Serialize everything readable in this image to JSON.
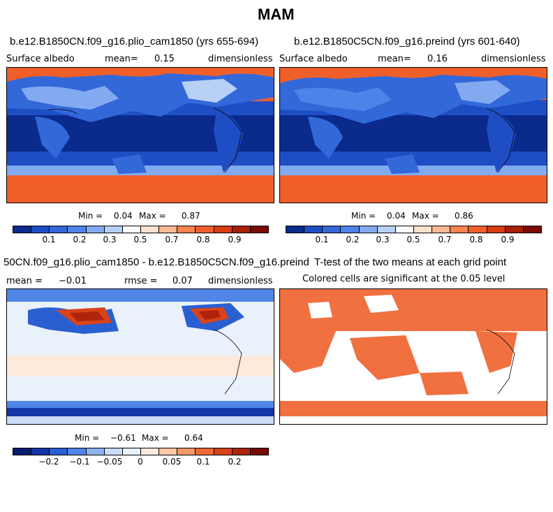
{
  "figure": {
    "title": "MAM"
  },
  "panels": [
    {
      "title": "b.e12.B1850CN.f09_g16.plio_cam1850 (yrs 655-694)",
      "variable": "Surface albedo",
      "mean_label": "mean=",
      "mean_value": "0.15",
      "units": "dimensionless",
      "min_label": "Min =",
      "min_value": "0.04",
      "max_label": "Max =",
      "max_value": "0.87"
    },
    {
      "title": "b.e12.B1850C5CN.f09_g16.preind (yrs 601-640)",
      "variable": "Surface albedo",
      "mean_label": "mean=",
      "mean_value": "0.16",
      "units": "dimensionless",
      "min_label": "Min =",
      "min_value": "0.04",
      "max_label": "Max =",
      "max_value": "0.86"
    },
    {
      "title": "50CN.f09_g16.plio_cam1850 - b.e12.B1850C5CN.f09_g16.preind",
      "mean_label": "mean =",
      "mean_value": "−0.01",
      "rmse_label": "rmse =",
      "rmse_value": "0.07",
      "units": "dimensionless",
      "min_label": "Min =",
      "min_value": "−0.61",
      "max_label": "Max =",
      "max_value": "0.64"
    },
    {
      "title": "T-test of the two means at each grid point",
      "subtitle": "Colored cells are significant at the 0.05 level"
    }
  ],
  "colorbars": {
    "albedo": {
      "colors": [
        "#0a2a8c",
        "#1f4ec4",
        "#3368d9",
        "#4d82e8",
        "#83aaf0",
        "#b8d0f6",
        "#ffffff",
        "#fde0cc",
        "#fbb892",
        "#f8844f",
        "#f05f2a",
        "#d83c14",
        "#a81f08",
        "#7a0a02"
      ],
      "ticks": [
        "0.1",
        "0.2",
        "0.3",
        "0.5",
        "0.7",
        "0.8",
        "0.9"
      ]
    },
    "difference": {
      "colors": [
        "#081d6e",
        "#1436a8",
        "#2a5fd1",
        "#5186e6",
        "#8fb3f1",
        "#c9dcf8",
        "#e9f1fb",
        "#fdeadb",
        "#fcc7a6",
        "#f79868",
        "#ee6a36",
        "#d9431a",
        "#ad230b",
        "#770a02"
      ],
      "ticks": [
        "−0.2",
        "−0.1",
        "−0.05",
        "0",
        "0.05",
        "0.1",
        "0.2"
      ]
    }
  }
}
